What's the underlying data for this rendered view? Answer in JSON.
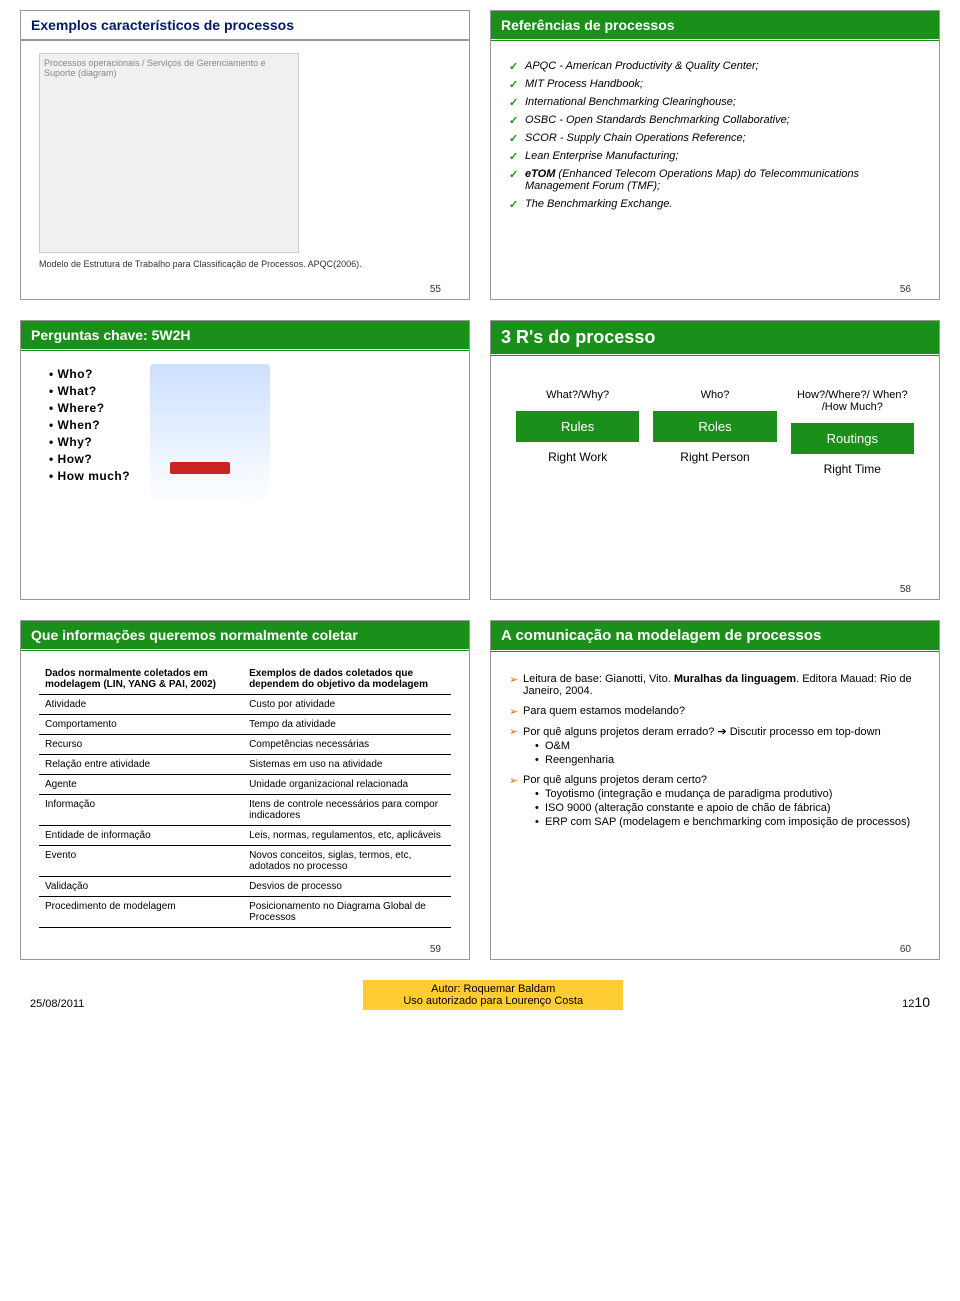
{
  "slides": {
    "s1": {
      "title": "Exemplos característicos de processos",
      "caption": "Modelo de Estrutura de Trabalho para Classificação de Processos. APQC(2006).",
      "num": "55"
    },
    "s2": {
      "title": "Referências de processos",
      "items": [
        "APQC - American Productivity & Quality Center;",
        "MIT Process Handbook;",
        "International Benchmarking Clearinghouse;",
        "OSBC - Open Standards Benchmarking Collaborative;",
        "SCOR - Supply Chain Operations Reference;",
        "Lean Enterprise Manufacturing;"
      ],
      "etom_prefix": "eTOM",
      "etom_rest": " (Enhanced Telecom Operations Map) do Telecommunications Management Forum (TMF);",
      "last": "The Benchmarking Exchange.",
      "num": "56"
    },
    "s3": {
      "title": "Perguntas chave: 5W2H",
      "bullets": [
        "Who?",
        "What?",
        "Where?",
        "When?",
        "Why?",
        "How?",
        "How much?"
      ]
    },
    "s4": {
      "title": "3 R's do processo",
      "cols": [
        {
          "q": "What?/Why?",
          "box": "Rules",
          "b": "Right Work"
        },
        {
          "q": "Who?",
          "box": "Roles",
          "b": "Right Person"
        },
        {
          "q": "How?/Where?/ When? /How Much?",
          "box": "Routings",
          "b": "Right Time"
        }
      ],
      "num": "58"
    },
    "s5": {
      "title": "Que informações queremos normalmente coletar",
      "th1": "Dados normalmente coletados em modelagem (LIN, YANG & PAI, 2002)",
      "th2": "Exemplos de dados coletados que dependem do objetivo da modelagem",
      "rows": [
        [
          "Atividade",
          "Custo por atividade"
        ],
        [
          "Comportamento",
          "Tempo da atividade"
        ],
        [
          "Recurso",
          "Competências necessárias"
        ],
        [
          "Relação entre atividade",
          "Sistemas em uso na atividade"
        ],
        [
          "Agente",
          "Unidade organizacional relacionada"
        ],
        [
          "Informação",
          "Itens de controle necessários para compor indicadores"
        ],
        [
          "Entidade de informação",
          "Leis, normas, regulamentos, etc, aplicáveis"
        ],
        [
          "Evento",
          "Novos conceitos, siglas, termos, etc, adotados no processo"
        ],
        [
          "Validação",
          "Desvios de processo"
        ],
        [
          "Procedimento de modelagem",
          "Posicionamento no Diagrama Global de Processos"
        ]
      ],
      "num": "59"
    },
    "s6": {
      "title": "A comunicação na modelagem de processos",
      "line1a": "Leitura de base: Gianotti, Vito. ",
      "line1b": "Muralhas da linguagem",
      "line1c": ". Editora Mauad: Rio de Janeiro, 2004.",
      "line2": "Para quem estamos modelando?",
      "line3": "Por quê alguns projetos deram errado? ➔ Discutir processo em top-down",
      "sub3": [
        "O&M",
        "Reengenharia"
      ],
      "line4": "Por quê alguns projetos deram certo?",
      "sub4": [
        "Toyotismo (integração e mudança de paradigma produtivo)",
        "ISO 9000 (alteração constante e apoio de chão de fábrica)",
        "ERP com SAP (modelagem e benchmarking com imposição de processos)"
      ],
      "num": "60"
    }
  },
  "footer": {
    "date": "25/08/2011",
    "author": "Autor: Roquemar Baldam",
    "use": "Uso autorizado para Lourenço Costa",
    "page_a": "12",
    "page_b": "10"
  }
}
